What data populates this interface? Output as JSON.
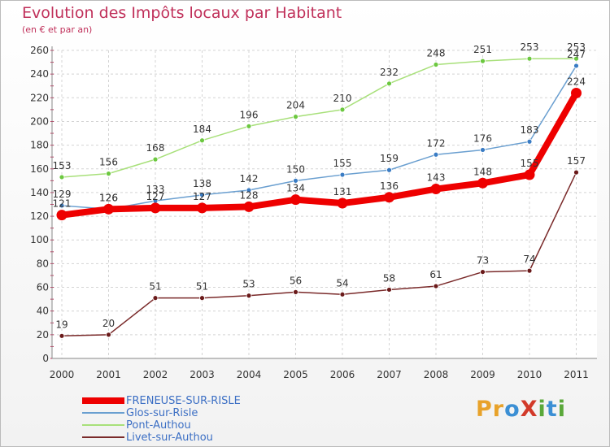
{
  "header": {
    "title": "Evolution des Impôts locaux par Habitant",
    "subtitle": "(en € et par an)"
  },
  "brand": {
    "name": "ProXiti",
    "letters": [
      "P",
      "r",
      "o",
      "X",
      "i",
      "t",
      "i"
    ],
    "letter_colors": [
      "#e8a22a",
      "#e8a22a",
      "#3b8fd4",
      "#d23a2a",
      "#5aa83a",
      "#3b8fd4",
      "#5aa83a"
    ]
  },
  "chart_data": {
    "type": "line",
    "title": "Evolution des Impôts locaux par Habitant",
    "subtitle": "(en € et par an)",
    "xlabel": "",
    "ylabel": "",
    "categories": [
      "2000",
      "2001",
      "2002",
      "2003",
      "2004",
      "2005",
      "2006",
      "2007",
      "2008",
      "2009",
      "2010",
      "2011"
    ],
    "ylim": [
      0,
      260
    ],
    "yticks": [
      0,
      20,
      40,
      60,
      80,
      100,
      120,
      140,
      160,
      180,
      200,
      220,
      240,
      260
    ],
    "grid": true,
    "legend_position": "bottom-left",
    "series": [
      {
        "name": "FRENEUSE-SUR-RISLE",
        "color": "#ee0000",
        "values": [
          121,
          126,
          127,
          127,
          128,
          134,
          131,
          136,
          143,
          148,
          155,
          224
        ],
        "labels": [
          "121",
          "126",
          "127",
          "127",
          "128",
          "134",
          "131",
          "136",
          "143",
          "148",
          "155",
          "224"
        ],
        "emphasis": true
      },
      {
        "name": "Glos-sur-Risle",
        "color": "#6a9fd0",
        "marker_color": "#3a7cc4",
        "values": [
          129,
          126,
          133,
          138,
          142,
          150,
          155,
          159,
          172,
          176,
          183,
          247
        ],
        "labels": [
          "129",
          "126",
          "133",
          "138",
          "142",
          "150",
          "155",
          "159",
          "172",
          "176",
          "183",
          "247"
        ]
      },
      {
        "name": "Pont-Authou",
        "color": "#a8e07a",
        "marker_color": "#6cc840",
        "values": [
          153,
          156,
          168,
          184,
          196,
          204,
          210,
          232,
          248,
          251,
          253,
          253
        ],
        "labels": [
          "153",
          "156",
          "168",
          "184",
          "196",
          "204",
          "210",
          "232",
          "248",
          "251",
          "253",
          "253"
        ]
      },
      {
        "name": "Livet-sur-Authou",
        "color": "#7a2a2a",
        "marker_color": "#6a1a1a",
        "values": [
          19,
          20,
          51,
          51,
          53,
          56,
          54,
          58,
          61,
          73,
          74,
          157
        ],
        "labels": [
          "19",
          "20",
          "51",
          "51",
          "53",
          "56",
          "54",
          "58",
          "61",
          "73",
          "74",
          "157"
        ]
      }
    ]
  }
}
